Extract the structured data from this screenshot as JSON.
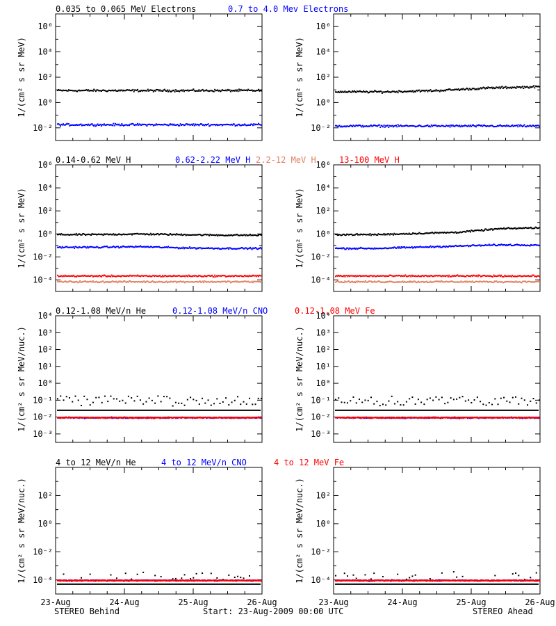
{
  "rows": [
    {
      "legend": [
        {
          "text": "0.035 to 0.065 MeV Electrons",
          "color": "#000000"
        },
        {
          "text": "0.7 to 4.0 Mev Electrons",
          "color": "#0000ff"
        }
      ],
      "ylabel": "1/(cm² s sr MeV)",
      "ylim": [
        -3,
        7
      ],
      "ticks": [
        {
          "exp": -2,
          "label": "10⁻²"
        },
        {
          "exp": 0,
          "label": "10⁰"
        },
        {
          "exp": 2,
          "label": "10²"
        },
        {
          "exp": 4,
          "label": "10⁴"
        },
        {
          "exp": 6,
          "label": "10⁶"
        }
      ]
    },
    {
      "legend": [
        {
          "text": "0.14-0.62 MeV H",
          "color": "#000000"
        },
        {
          "text": "0.62-2.22 MeV H",
          "color": "#0000ff"
        },
        {
          "text": "2.2-12 MeV H",
          "color": "#e08060"
        },
        {
          "text": "13-100 MeV H",
          "color": "#ff0000"
        }
      ],
      "ylabel": "1/(cm² s sr MeV)",
      "ylim": [
        -5,
        6
      ],
      "ticks": [
        {
          "exp": -4,
          "label": "10⁻⁴"
        },
        {
          "exp": -2,
          "label": "10⁻²"
        },
        {
          "exp": 0,
          "label": "10⁰"
        },
        {
          "exp": 2,
          "label": "10²"
        },
        {
          "exp": 4,
          "label": "10⁴"
        },
        {
          "exp": 6,
          "label": "10⁶"
        }
      ]
    },
    {
      "legend": [
        {
          "text": "0.12-1.08 MeV/n He",
          "color": "#000000"
        },
        {
          "text": "0.12-1.08 MeV/n CNO",
          "color": "#0000ff"
        },
        {
          "text": "0.12-1.08 MeV Fe",
          "color": "#ff0000"
        }
      ],
      "ylabel": "1/(cm² s sr MeV/nuc.)",
      "ylim": [
        -3.5,
        4
      ],
      "ticks": [
        {
          "exp": -3,
          "label": "10⁻³"
        },
        {
          "exp": -2,
          "label": "10⁻²"
        },
        {
          "exp": -1,
          "label": "10⁻¹"
        },
        {
          "exp": 0,
          "label": "10⁰"
        },
        {
          "exp": 1,
          "label": "10¹"
        },
        {
          "exp": 2,
          "label": "10²"
        },
        {
          "exp": 3,
          "label": "10³"
        },
        {
          "exp": 4,
          "label": "10⁴"
        }
      ]
    },
    {
      "legend": [
        {
          "text": "4 to 12 MeV/n He",
          "color": "#000000"
        },
        {
          "text": "4 to 12 MeV/n CNO",
          "color": "#0000ff"
        },
        {
          "text": "4 to 12 MeV Fe",
          "color": "#ff0000"
        }
      ],
      "ylabel": "1/(cm² s sr MeV/nuc.)",
      "ylim": [
        -5,
        4
      ],
      "ticks": [
        {
          "exp": -4,
          "label": "10⁻⁴"
        },
        {
          "exp": -2,
          "label": "10⁻²"
        },
        {
          "exp": 0,
          "label": "10⁰"
        },
        {
          "exp": 2,
          "label": "10²"
        }
      ]
    }
  ],
  "x_ticks": [
    "23-Aug",
    "24-Aug",
    "25-Aug",
    "26-Aug"
  ],
  "footer": {
    "left": "STEREO Behind",
    "center": "Start: 23-Aug-2009 00:00 UTC",
    "right": "STEREO Ahead"
  },
  "chart_data": [
    {
      "type": "scatter",
      "panel": "Behind",
      "row": 1,
      "xlim": [
        "23-Aug",
        "26-Aug"
      ],
      "log_y": true,
      "series": [
        {
          "name": "0.035 to 0.065 MeV Electrons",
          "color": "#000000",
          "level_log10": [
            1,
            1,
            1,
            1
          ]
        },
        {
          "name": "0.7 to 4.0 Mev Electrons",
          "color": "#0000ff",
          "level_log10": [
            -1.7,
            -1.7,
            -1.7,
            -1.7
          ]
        }
      ]
    },
    {
      "type": "scatter",
      "panel": "Ahead",
      "row": 1,
      "xlim": [
        "23-Aug",
        "26-Aug"
      ],
      "log_y": true,
      "series": [
        {
          "name": "0.035 to 0.065 MeV Electrons",
          "color": "#000000",
          "level_log10": [
            0.9,
            0.9,
            1.0,
            1.2,
            1.3
          ]
        },
        {
          "name": "0.7 to 4.0 Mev Electrons",
          "color": "#0000ff",
          "level_log10": [
            -1.8,
            -1.8,
            -1.8,
            -1.8,
            -1.8
          ]
        }
      ]
    },
    {
      "type": "scatter",
      "panel": "Behind",
      "row": 2,
      "xlim": [
        "23-Aug",
        "26-Aug"
      ],
      "log_y": true,
      "series": [
        {
          "name": "0.14-0.62 MeV H",
          "color": "#000000",
          "level_log10": [
            0.0,
            0.0,
            0.05,
            0.0,
            -0.05,
            -0.05
          ]
        },
        {
          "name": "0.62-2.22 MeV H",
          "color": "#0000ff",
          "level_log10": [
            -1.1,
            -1.1,
            -1.05,
            -1.15,
            -1.2,
            -1.2
          ]
        },
        {
          "name": "2.2-12 MeV H",
          "color": "#e08060",
          "level_log10": [
            -4.1,
            -4.1,
            -4.1,
            -4.1
          ]
        },
        {
          "name": "13-100 MeV H",
          "color": "#ff0000",
          "level_log10": [
            -3.6,
            -3.6,
            -3.6,
            -3.6
          ]
        }
      ]
    },
    {
      "type": "scatter",
      "panel": "Ahead",
      "row": 2,
      "xlim": [
        "23-Aug",
        "26-Aug"
      ],
      "log_y": true,
      "series": [
        {
          "name": "0.14-0.62 MeV H",
          "color": "#000000",
          "level_log10": [
            0.0,
            0.0,
            0.1,
            0.2,
            0.5,
            0.6
          ]
        },
        {
          "name": "0.62-2.22 MeV H",
          "color": "#0000ff",
          "level_log10": [
            -1.2,
            -1.2,
            -1.1,
            -1.0,
            -0.9,
            -0.9
          ]
        },
        {
          "name": "2.2-12 MeV H",
          "color": "#e08060",
          "level_log10": [
            -4.1,
            -4.1,
            -4.1,
            -4.1
          ]
        },
        {
          "name": "13-100 MeV H",
          "color": "#ff0000",
          "level_log10": [
            -3.6,
            -3.6,
            -3.6,
            -3.6
          ]
        }
      ]
    },
    {
      "type": "scatter",
      "panel": "Behind",
      "row": 3,
      "xlim": [
        "23-Aug",
        "26-Aug"
      ],
      "log_y": true,
      "series": [
        {
          "name": "0.12-1.08 MeV/n He",
          "color": "#000000",
          "level_log10": [
            -1.3,
            -1.3,
            -1.3,
            -1.3
          ]
        },
        {
          "name": "0.12-1.08 MeV/n CNO",
          "color": "#0000ff",
          "level_log10": [
            -2.0,
            -2.0,
            -2.0,
            -2.0
          ]
        },
        {
          "name": "0.12-1.08 MeV Fe",
          "color": "#ff0000",
          "level_log10": [
            -2.0,
            -2.0,
            -2.0,
            -2.0
          ]
        }
      ]
    },
    {
      "type": "scatter",
      "panel": "Ahead",
      "row": 3,
      "xlim": [
        "23-Aug",
        "26-Aug"
      ],
      "log_y": true,
      "series": [
        {
          "name": "0.12-1.08 MeV/n He",
          "color": "#000000",
          "level_log10": [
            -1.3,
            -1.3,
            -1.3,
            -1.3
          ]
        },
        {
          "name": "0.12-1.08 MeV/n CNO",
          "color": "#0000ff",
          "level_log10": [
            -2.0,
            -2.0,
            -2.0,
            -2.0
          ]
        },
        {
          "name": "0.12-1.08 MeV Fe",
          "color": "#ff0000",
          "level_log10": [
            -2.0,
            -2.0,
            -2.0,
            -2.0
          ]
        }
      ]
    },
    {
      "type": "scatter",
      "panel": "Behind",
      "row": 4,
      "xlim": [
        "23-Aug",
        "26-Aug"
      ],
      "log_y": true,
      "series": [
        {
          "name": "4 to 12 MeV/n He",
          "color": "#000000",
          "level_log10": [
            -4.0,
            -4.0,
            -4.0,
            -4.0
          ]
        },
        {
          "name": "4 to 12 MeV/n CNO",
          "color": "#0000ff",
          "level_log10": [
            -4.0,
            -4.0,
            -4.0,
            -4.0
          ]
        },
        {
          "name": "4 to 12 MeV Fe",
          "color": "#ff0000",
          "level_log10": [
            -4.0,
            -4.0,
            -4.0,
            -4.0
          ]
        }
      ]
    },
    {
      "type": "scatter",
      "panel": "Ahead",
      "row": 4,
      "xlim": [
        "23-Aug",
        "26-Aug"
      ],
      "log_y": true,
      "series": [
        {
          "name": "4 to 12 MeV/n He",
          "color": "#000000",
          "level_log10": [
            -4.0,
            -4.0,
            -4.0,
            -4.0
          ]
        },
        {
          "name": "4 to 12 MeV/n CNO",
          "color": "#0000ff",
          "level_log10": [
            -4.0,
            -4.0,
            -4.0,
            -4.0
          ]
        },
        {
          "name": "4 to 12 MeV Fe",
          "color": "#ff0000",
          "level_log10": [
            -4.0,
            -4.0,
            -4.0,
            -4.0
          ]
        }
      ]
    }
  ]
}
